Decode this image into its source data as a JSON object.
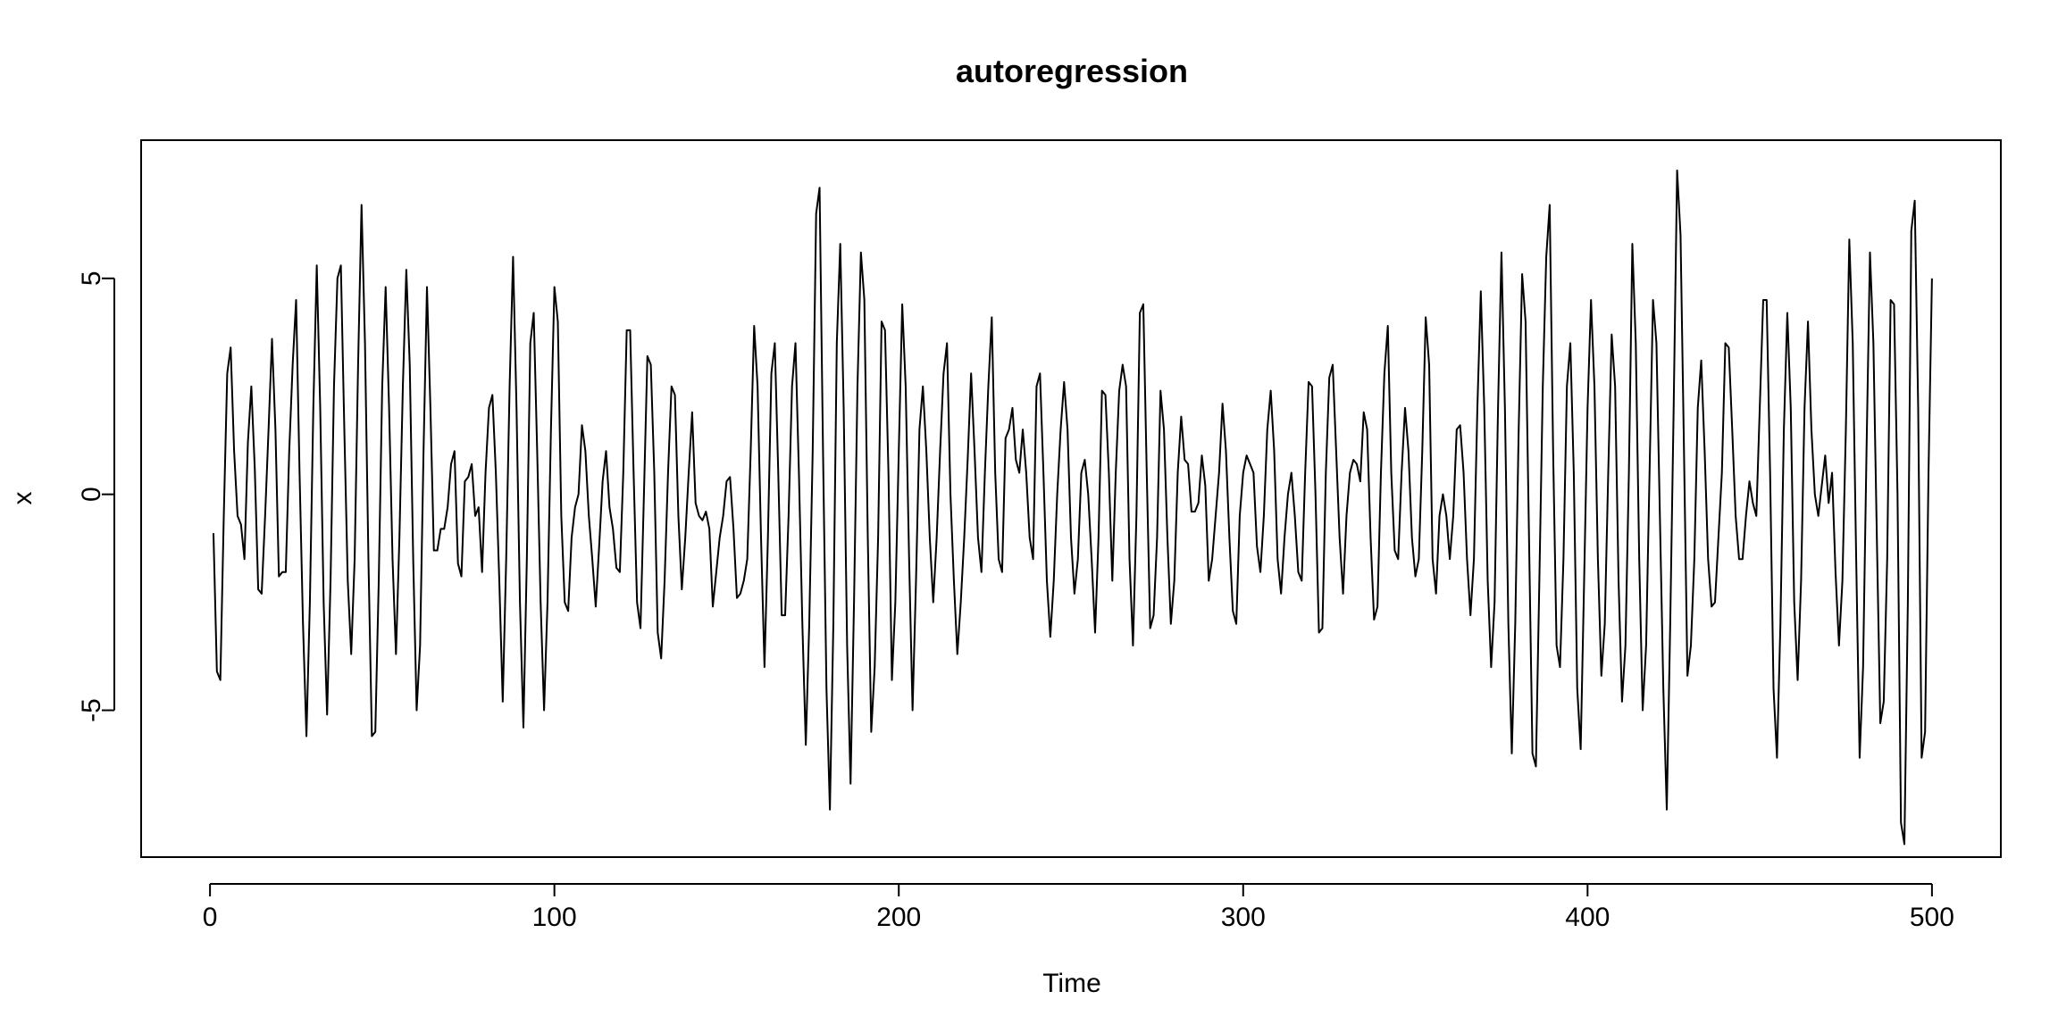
{
  "chart_data": {
    "type": "line",
    "title": "autoregression",
    "xlabel": "Time",
    "ylabel": "x",
    "xlim": [
      -20,
      520
    ],
    "ylim": [
      -8.4,
      8.2
    ],
    "xticks": [
      0,
      100,
      200,
      300,
      400,
      500
    ],
    "yticks": [
      -5,
      0,
      5
    ],
    "grid": false,
    "legend": "none",
    "line_color": "#000000",
    "series": [
      {
        "x_start": 1,
        "x_step": 1,
        "values": [
          -0.9,
          -4.1,
          -4.3,
          -0.5,
          2.8,
          3.4,
          1.0,
          -0.5,
          -0.7,
          -1.5,
          1.2,
          2.5,
          0.6,
          -2.2,
          -2.3,
          -0.5,
          1.5,
          3.6,
          1.5,
          -1.9,
          -1.8,
          -1.8,
          1.0,
          3.0,
          4.5,
          0.5,
          -3.0,
          -5.6,
          -2.5,
          2.0,
          5.3,
          2.0,
          -2.5,
          -5.1,
          -2.0,
          2.5,
          5.0,
          5.3,
          1.5,
          -2.0,
          -3.7,
          -1.5,
          3.0,
          6.7,
          3.5,
          -1.5,
          -5.6,
          -5.5,
          -2.0,
          2.5,
          4.8,
          2.0,
          -1.5,
          -3.7,
          -1.0,
          2.5,
          5.2,
          3.0,
          -1.5,
          -5.0,
          -3.5,
          1.0,
          4.8,
          2.0,
          -1.3,
          -1.3,
          -0.8,
          -0.8,
          -0.3,
          0.7,
          1.0,
          -1.6,
          -1.9,
          0.3,
          0.4,
          0.7,
          -0.5,
          -0.3,
          -1.8,
          0.5,
          2.0,
          2.3,
          0.5,
          -2.0,
          -4.8,
          -1.5,
          2.5,
          5.5,
          2.0,
          -2.5,
          -5.4,
          -1.5,
          3.5,
          4.2,
          1.0,
          -2.5,
          -5.0,
          -2.5,
          1.5,
          4.8,
          4.0,
          -0.5,
          -2.5,
          -2.7,
          -1.0,
          -0.3,
          0.0,
          1.6,
          1.0,
          -0.5,
          -1.5,
          -2.6,
          -1.2,
          0.3,
          1.0,
          -0.3,
          -0.8,
          -1.7,
          -1.8,
          0.5,
          3.8,
          3.8,
          0.5,
          -2.5,
          -3.1,
          0.0,
          3.2,
          3.0,
          0.5,
          -3.2,
          -3.8,
          -2.0,
          0.5,
          2.5,
          2.3,
          -0.5,
          -2.2,
          -1.0,
          0.5,
          1.9,
          -0.2,
          -0.5,
          -0.6,
          -0.4,
          -0.8,
          -2.6,
          -1.8,
          -1.0,
          -0.5,
          0.3,
          0.4,
          -0.8,
          -2.4,
          -2.3,
          -2.0,
          -1.5,
          1.0,
          3.9,
          2.5,
          -1.0,
          -4.0,
          -1.0,
          2.8,
          3.5,
          0.5,
          -2.8,
          -2.8,
          -0.5,
          2.5,
          3.5,
          0.5,
          -3.0,
          -5.8,
          -3.0,
          1.0,
          6.5,
          7.1,
          1.0,
          -4.5,
          -7.3,
          -3.0,
          3.5,
          5.8,
          2.0,
          -3.5,
          -6.7,
          -2.5,
          2.5,
          5.6,
          4.5,
          -1.0,
          -5.5,
          -4.0,
          -1.0,
          4.0,
          3.8,
          0.5,
          -4.3,
          -2.5,
          1.0,
          4.4,
          2.5,
          -1.5,
          -5.0,
          -2.0,
          1.5,
          2.5,
          1.0,
          -1.0,
          -2.5,
          -1.0,
          1.0,
          2.8,
          3.5,
          0.0,
          -2.0,
          -3.7,
          -2.5,
          -1.0,
          0.8,
          2.8,
          1.0,
          -1.0,
          -1.8,
          0.5,
          2.5,
          4.1,
          0.5,
          -1.5,
          -1.8,
          1.3,
          1.5,
          2.0,
          0.8,
          0.5,
          1.5,
          0.5,
          -1.0,
          -1.5,
          2.5,
          2.8,
          0.5,
          -2.0,
          -3.3,
          -2.0,
          0.0,
          1.5,
          2.6,
          1.5,
          -1.0,
          -2.3,
          -1.5,
          0.5,
          0.8,
          0.0,
          -1.5,
          -3.2,
          -1.0,
          2.4,
          2.3,
          0.5,
          -2.0,
          0.5,
          2.4,
          3.0,
          2.5,
          -1.5,
          -3.5,
          -0.5,
          4.2,
          4.4,
          0.5,
          -3.1,
          -2.8,
          -1.0,
          2.4,
          1.5,
          -1.0,
          -3.0,
          -2.0,
          0.5,
          1.8,
          0.8,
          0.7,
          -0.4,
          -0.4,
          -0.2,
          0.9,
          0.2,
          -2.0,
          -1.5,
          -0.5,
          0.5,
          2.1,
          1.0,
          -1.0,
          -2.7,
          -3.0,
          -0.5,
          0.5,
          0.9,
          0.7,
          0.5,
          -1.2,
          -1.8,
          -0.5,
          1.5,
          2.4,
          1.0,
          -1.5,
          -2.3,
          -1.0,
          0.0,
          0.5,
          -0.5,
          -1.8,
          -2.0,
          0.5,
          2.6,
          2.5,
          0.0,
          -3.2,
          -3.1,
          0.5,
          2.7,
          3.0,
          1.0,
          -1.0,
          -2.3,
          -0.5,
          0.5,
          0.8,
          0.7,
          0.3,
          1.9,
          1.5,
          -1.0,
          -2.9,
          -2.6,
          0.5,
          2.8,
          3.9,
          0.5,
          -1.3,
          -1.5,
          0.5,
          2.0,
          1.0,
          -1.0,
          -1.9,
          -1.5,
          1.0,
          4.1,
          3.0,
          -1.5,
          -2.3,
          -0.5,
          0.0,
          -0.5,
          -1.5,
          -0.5,
          1.5,
          1.6,
          0.5,
          -1.5,
          -2.8,
          -1.5,
          2.0,
          4.7,
          2.0,
          -2.0,
          -4.0,
          -2.5,
          2.0,
          5.6,
          2.0,
          -3.0,
          -6.0,
          -3.0,
          1.5,
          5.1,
          4.0,
          -1.0,
          -6.0,
          -6.3,
          -2.0,
          2.5,
          5.5,
          6.7,
          1.0,
          -3.5,
          -4.0,
          -1.5,
          2.5,
          3.5,
          0.5,
          -4.5,
          -5.9,
          -2.0,
          2.0,
          4.5,
          2.5,
          -1.5,
          -4.2,
          -3.0,
          0.5,
          3.7,
          2.5,
          -2.0,
          -4.8,
          -3.5,
          0.5,
          5.8,
          3.5,
          -1.5,
          -5.0,
          -3.5,
          0.5,
          4.5,
          3.5,
          -0.5,
          -4.5,
          -7.3,
          -3.0,
          2.0,
          7.5,
          6.0,
          1.0,
          -4.2,
          -3.5,
          -1.5,
          2.0,
          3.1,
          1.0,
          -1.5,
          -2.6,
          -2.5,
          -1.0,
          0.5,
          3.5,
          3.4,
          1.5,
          -0.5,
          -1.5,
          -1.5,
          -0.5,
          0.3,
          -0.2,
          -0.5,
          2.0,
          4.5,
          4.5,
          0.5,
          -4.5,
          -6.1,
          -3.0,
          1.5,
          4.2,
          2.0,
          -2.5,
          -4.3,
          -2.0,
          2.0,
          4.0,
          1.5,
          0.0,
          -0.5,
          0.2,
          0.9,
          -0.2,
          0.5,
          -1.8,
          -3.5,
          -2.0,
          1.5,
          5.9,
          3.5,
          -1.5,
          -6.1,
          -4.0,
          1.0,
          5.6,
          3.5,
          -1.0,
          -5.3,
          -4.8,
          -1.5,
          4.5,
          4.4,
          0.0,
          -7.6,
          -8.1,
          -2.5,
          6.1,
          6.8,
          2.0,
          -6.1,
          -5.5,
          0.5,
          5.0
        ]
      }
    ]
  }
}
